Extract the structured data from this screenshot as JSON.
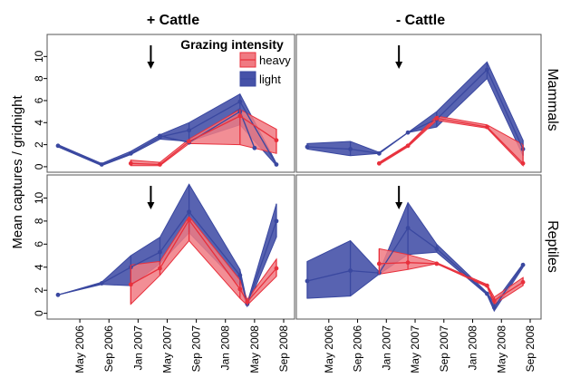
{
  "figure": {
    "col_titles": [
      "+ Cattle",
      "- Cattle"
    ],
    "row_titles": [
      "Mammals",
      "Reptiles"
    ],
    "ylabel": "Mean captures / gridnight",
    "legend": {
      "title": "Grazing intensity",
      "labels": [
        "heavy",
        "light"
      ]
    }
  },
  "colors": {
    "heavy": "#e8303c",
    "heavy_fill": "#f07a82",
    "light": "#3a48a0",
    "light_fill": "#4652a8"
  },
  "chart_data": [
    {
      "type": "line",
      "panel": "+ Cattle / Mammals",
      "x_ticks": [
        "May 2006",
        "Sep 2006",
        "Jan 2007",
        "May 2007",
        "Sep 2007",
        "Jan 2008",
        "May 2008",
        "Sep 2008"
      ],
      "ylim": [
        -0.5,
        12
      ],
      "yticks": [
        0,
        2,
        4,
        6,
        8,
        10
      ],
      "arrow_x": "Mar 2007",
      "series": [
        {
          "name": "heavy",
          "x": [
            "Dec 2006",
            "Apr 2007",
            "Aug 2007",
            "Mar 2008",
            "Aug 2008"
          ],
          "y": [
            0.3,
            0.2,
            2.3,
            4.6,
            2.4
          ],
          "lower": [
            0.1,
            0.1,
            2.1,
            2.0,
            1.2
          ],
          "upper": [
            0.6,
            0.4,
            2.5,
            5.2,
            3.4
          ]
        },
        {
          "name": "light",
          "x": [
            "Feb 2006",
            "Aug 2006",
            "Dec 2006",
            "Apr 2007",
            "Aug 2007",
            "Mar 2008",
            "Aug 2008"
          ],
          "y": [
            1.9,
            0.2,
            1.2,
            2.7,
            3.3,
            5.9,
            0.2
          ],
          "lower": [
            1.8,
            0.1,
            1.1,
            2.5,
            2.3,
            3.8,
            0.1
          ],
          "upper": [
            2.0,
            0.3,
            1.4,
            2.9,
            4.0,
            6.6,
            0.3
          ]
        },
        {
          "name": "light",
          "x": [
            "Apr 2007",
            "Aug 2007",
            "Mar 2008",
            "May 2008"
          ],
          "y": [
            2.8,
            2.2,
            5.0,
            1.7
          ],
          "lower": [
            2.8,
            2.2,
            4.7,
            1.7
          ],
          "upper": [
            2.8,
            2.2,
            5.3,
            1.7
          ]
        }
      ]
    },
    {
      "type": "line",
      "panel": "- Cattle / Mammals",
      "x_ticks": [
        "May 2006",
        "Sep 2006",
        "Jan 2007",
        "May 2007",
        "Sep 2007",
        "Jan 2008",
        "May 2008",
        "Sep 2008"
      ],
      "ylim": [
        -0.5,
        12
      ],
      "yticks": [
        0,
        2,
        4,
        6,
        8,
        10
      ],
      "arrow_x": "Mar 2007",
      "series": [
        {
          "name": "heavy",
          "x": [
            "Dec 2006",
            "Apr 2007",
            "Aug 2007",
            "Mar 2008",
            "Aug 2008"
          ],
          "y": [
            0.3,
            1.9,
            4.4,
            3.6,
            0.3
          ],
          "lower": [
            0.2,
            1.8,
            4.2,
            3.5,
            0.1
          ],
          "upper": [
            0.4,
            2.0,
            4.6,
            3.8,
            2.0
          ]
        },
        {
          "name": "light",
          "x": [
            "Feb 2006",
            "Aug 2006",
            "Dec 2006",
            "Apr 2007",
            "Aug 2007",
            "Mar 2008",
            "Aug 2008"
          ],
          "y": [
            1.8,
            1.6,
            1.2,
            3.1,
            4.3,
            8.8,
            1.6
          ],
          "lower": [
            1.6,
            1.0,
            1.2,
            3.1,
            3.6,
            8.0,
            1.0
          ],
          "upper": [
            2.1,
            2.3,
            1.3,
            3.1,
            5.0,
            9.5,
            2.4
          ]
        }
      ]
    },
    {
      "type": "line",
      "panel": "+ Cattle / Reptiles",
      "x_ticks": [
        "May 2006",
        "Sep 2006",
        "Jan 2007",
        "May 2007",
        "Sep 2007",
        "Jan 2008",
        "May 2008",
        "Sep 2008"
      ],
      "ylim": [
        -0.5,
        12
      ],
      "yticks": [
        0,
        2,
        4,
        6,
        8,
        10
      ],
      "arrow_x": "Mar 2007",
      "series": [
        {
          "name": "heavy",
          "x": [
            "Dec 2006",
            "Apr 2007",
            "Aug 2007",
            "Mar 2008",
            "Apr 2008",
            "Aug 2008"
          ],
          "y": [
            2.5,
            3.9,
            8.1,
            2.1,
            1.0,
            3.9
          ],
          "lower": [
            0.8,
            3.3,
            6.3,
            1.3,
            0.7,
            3.2
          ],
          "upper": [
            4.2,
            4.5,
            8.4,
            2.9,
            1.2,
            4.7
          ]
        },
        {
          "name": "light",
          "x": [
            "Feb 2006",
            "Aug 2006",
            "Dec 2006",
            "Apr 2007",
            "Aug 2007",
            "Mar 2008",
            "Apr 2008",
            "Aug 2008"
          ],
          "y": [
            1.6,
            2.6,
            4.0,
            5.3,
            8.8,
            3.3,
            0.8,
            8.0
          ],
          "lower": [
            1.6,
            2.5,
            2.4,
            4.3,
            7.0,
            2.4,
            0.6,
            6.6
          ],
          "upper": [
            1.6,
            2.7,
            5.0,
            6.6,
            11.2,
            3.8,
            0.9,
            9.5
          ]
        }
      ]
    },
    {
      "type": "line",
      "panel": "- Cattle / Reptiles",
      "x_ticks": [
        "May 2006",
        "Sep 2006",
        "Jan 2007",
        "May 2007",
        "Sep 2007",
        "Jan 2008",
        "May 2008",
        "Sep 2008"
      ],
      "ylim": [
        -0.5,
        12
      ],
      "yticks": [
        0,
        2,
        4,
        6,
        8,
        10
      ],
      "arrow_x": "Mar 2007",
      "series": [
        {
          "name": "heavy",
          "x": [
            "Dec 2006",
            "Apr 2007",
            "Aug 2007",
            "Mar 2008",
            "Apr 2008",
            "Aug 2008"
          ],
          "y": [
            4.3,
            4.4,
            4.3,
            2.4,
            1.1,
            2.7
          ],
          "lower": [
            3.4,
            3.8,
            4.3,
            2.3,
            0.8,
            2.4
          ],
          "upper": [
            5.6,
            5.1,
            4.4,
            2.5,
            1.4,
            3.1
          ]
        },
        {
          "name": "light",
          "x": [
            "Feb 2006",
            "Aug 2006",
            "Dec 2006",
            "Apr 2007",
            "Aug 2007",
            "Mar 2008",
            "Apr 2008",
            "Aug 2008"
          ],
          "y": [
            2.8,
            3.7,
            3.5,
            7.4,
            5.6,
            1.7,
            0.5,
            4.2
          ],
          "lower": [
            1.3,
            1.5,
            3.4,
            5.1,
            5.3,
            1.6,
            0.2,
            4.0
          ],
          "upper": [
            4.5,
            6.3,
            3.6,
            9.6,
            6.0,
            1.8,
            0.9,
            4.3
          ]
        }
      ]
    }
  ]
}
